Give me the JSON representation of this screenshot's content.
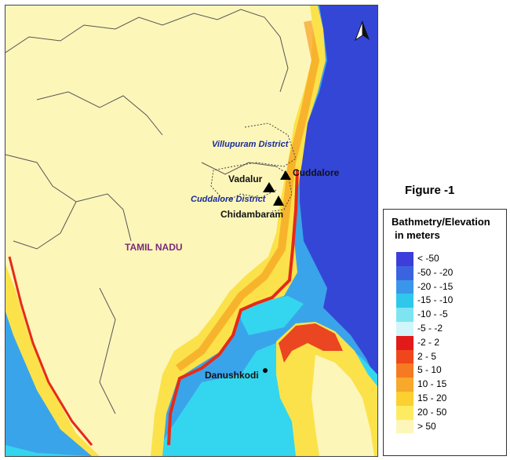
{
  "map": {
    "colors": {
      "land": "#fdf6b9",
      "coast_yellow": "#fbe24a",
      "coast_orange": "#f6a020",
      "coast_red": "#e62a1a",
      "shelf_cyan": "#33d6ee",
      "mid_blue": "#3aa4ea",
      "deep_blue": "#3446d6",
      "district_boundary": "#444444",
      "state_boundary": "#555555"
    },
    "labels": {
      "state": "TAMIL NADU",
      "villupuram": "Villupuram District",
      "cuddalore_district": "Cuddalore District",
      "cuddalore": "Cuddalore",
      "vadalur": "Vadalur",
      "chidambaram": "Chidambaram",
      "danushkodi": "Danushkodi"
    },
    "north_arrow_icon": "north-arrow-icon",
    "site_marker_icon": "triangle-icon"
  },
  "figure": {
    "title": "Figure -1"
  },
  "legend": {
    "title_line1": "Bathmetry/Elevation",
    "title_line2": "in meters",
    "items": [
      {
        "label": "< -50",
        "color": "#3d3ddb"
      },
      {
        "label": "-50 - -20",
        "color": "#3b63e0"
      },
      {
        "label": "-20 - -15",
        "color": "#3a96ea"
      },
      {
        "label": "-15 - -10",
        "color": "#2fc8ec"
      },
      {
        "label": "-10 - -5",
        "color": "#7fe4f2"
      },
      {
        "label": "-5 - -2",
        "color": "#d0f6fa"
      },
      {
        "label": "-2 - 2",
        "color": "#e31a1a"
      },
      {
        "label": "2 - 5",
        "color": "#f0461c"
      },
      {
        "label": "5 - 10",
        "color": "#f57a22"
      },
      {
        "label": "10 - 15",
        "color": "#f8a82a"
      },
      {
        "label": "15 - 20",
        "color": "#fbd030"
      },
      {
        "label": "20 - 50",
        "color": "#fdec62"
      },
      {
        "label": "> 50",
        "color": "#fdf6b9"
      }
    ]
  }
}
